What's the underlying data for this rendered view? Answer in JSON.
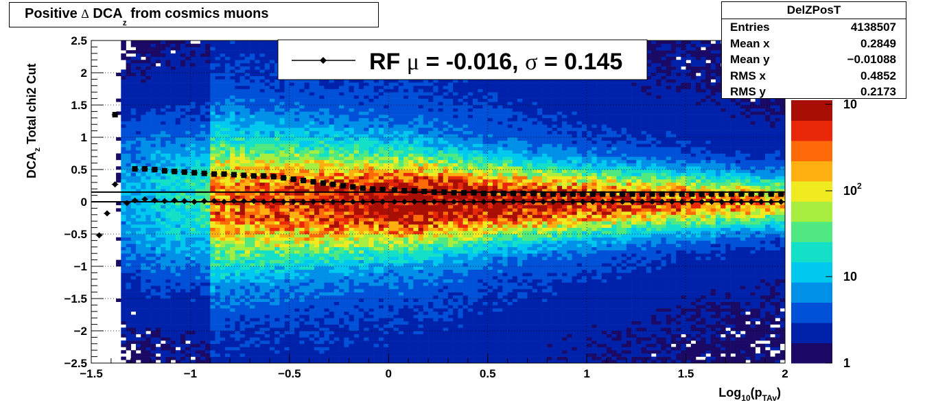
{
  "title": {
    "prefix": "Positive ",
    "delta": "Δ",
    "main": " DCA",
    "sub": "z",
    "suffix": " from cosmics muons"
  },
  "stats": {
    "name": "DelZPosT",
    "rows": [
      {
        "label": "Entries",
        "value": "4138507"
      },
      {
        "label": "Mean x",
        "value": "0.2849"
      },
      {
        "label": "Mean y",
        "value": "−0.01088"
      },
      {
        "label": "RMS x",
        "value": "0.4852"
      },
      {
        "label": "RMS y",
        "value": "0.2173"
      }
    ]
  },
  "legend": {
    "text_prefix": "RF ",
    "mu": "μ",
    "text_mid": " = -0.016, ",
    "sigma": "σ",
    "text_end": " =   0.145"
  },
  "colors": {
    "marker": "#000000",
    "axis": "#000000",
    "grid": "#000000",
    "palette": [
      "#1a0a66",
      "#0022aa",
      "#0050d8",
      "#0090e8",
      "#00c8ef",
      "#14e0c8",
      "#50e880",
      "#a8ee40",
      "#f0ea20",
      "#ffb010",
      "#ff6a08",
      "#e82808",
      "#a80e04"
    ]
  },
  "chart_data": {
    "type": "heatmap",
    "title": "Positive Δ DCAz from cosmics muons",
    "xlabel": "Log10(pTAv)",
    "ylabel": "DCAz   Total chi2 Cut",
    "xlim": [
      -1.5,
      2
    ],
    "ylim": [
      -2.5,
      2.5
    ],
    "x_ticks": [
      "−1.5",
      "−1",
      "−0.5",
      "0",
      "0.5",
      "1",
      "1.5",
      "2"
    ],
    "x_tick_values": [
      -1.5,
      -1,
      -0.5,
      0,
      0.5,
      1,
      1.5,
      2
    ],
    "y_ticks": [
      "2.5",
      "2",
      "1.5",
      "1",
      "0.5",
      "0",
      "−0.5",
      "−1",
      "−1.5",
      "−2",
      "−2.5"
    ],
    "y_tick_values": [
      2.5,
      2,
      1.5,
      1,
      0.5,
      0,
      -0.5,
      -1,
      -1.5,
      -2,
      -2.5
    ],
    "z_scale": "log",
    "z_ticks": [
      "1",
      "10",
      "10",
      "10"
    ],
    "z_tick_exponents": [
      "",
      "",
      "2",
      ""
    ],
    "grid": true,
    "series": [
      {
        "name": "RF μ = -0.016, σ = 0.145",
        "marker": "diamond",
        "x": [
          -1.46,
          -1.42,
          -1.38,
          -1.32,
          -1.28,
          -1.23,
          -1.18,
          -1.13,
          -1.08,
          -1.03,
          -0.98,
          -0.93,
          -0.88,
          -0.83,
          -0.78,
          -0.73,
          -0.68,
          -0.63,
          -0.58,
          -0.53,
          -0.48,
          -0.43,
          -0.38,
          -0.33,
          -0.28,
          -0.23,
          -0.18,
          -0.13,
          -0.08,
          -0.03,
          0.03,
          0.08,
          0.13,
          0.18,
          0.23,
          0.28,
          0.33,
          0.38,
          0.43,
          0.48,
          0.53,
          0.58,
          0.63,
          0.68,
          0.73,
          0.78,
          0.83,
          0.88,
          0.93,
          0.98,
          1.03,
          1.08,
          1.13,
          1.18,
          1.23,
          1.28,
          1.33,
          1.38,
          1.43,
          1.48,
          1.53,
          1.58,
          1.63,
          1.68,
          1.73,
          1.78,
          1.83,
          1.88,
          1.93,
          1.98
        ],
        "y": [
          -0.52,
          -0.18,
          0.27,
          -0.02,
          0.02,
          0.04,
          0.02,
          0.01,
          0.02,
          0.01,
          0.0,
          0.01,
          0.01,
          0.0,
          0.01,
          0.01,
          0.01,
          0.0,
          0.01,
          0.0,
          0.0,
          0.0,
          0.0,
          0.0,
          0.0,
          0.0,
          0.0,
          0.0,
          0.0,
          0.0,
          0.0,
          0.0,
          0.0,
          0.0,
          0.0,
          0.0,
          0.0,
          0.0,
          0.0,
          0.0,
          0.0,
          0.0,
          0.0,
          0.0,
          0.0,
          0.0,
          0.0,
          0.0,
          0.0,
          0.0,
          0.0,
          0.0,
          0.0,
          0.0,
          0.0,
          0.0,
          0.0,
          0.0,
          0.0,
          0.0,
          0.0,
          0.0,
          0.0,
          0.0,
          0.0,
          0.0,
          0.0,
          0.0,
          0.0,
          0.0
        ]
      },
      {
        "name": "",
        "marker": "square",
        "x": [
          -1.38,
          -1.28,
          -1.23,
          -1.18,
          -1.13,
          -1.08,
          -1.03,
          -0.98,
          -0.93,
          -0.88,
          -0.83,
          -0.78,
          -0.73,
          -0.68,
          -0.63,
          -0.58,
          -0.53,
          -0.48,
          -0.43,
          -0.38,
          -0.33,
          -0.28,
          -0.23,
          -0.18,
          -0.13,
          -0.08,
          -0.03,
          0.03,
          0.08,
          0.13,
          0.18,
          0.23,
          0.28,
          0.33,
          0.38,
          0.43,
          0.48,
          0.53,
          0.58,
          0.63,
          0.68,
          0.73,
          0.78,
          0.83,
          0.88,
          0.93,
          0.98,
          1.03,
          1.08,
          1.13,
          1.18,
          1.23,
          1.28,
          1.33,
          1.38,
          1.43,
          1.48,
          1.53,
          1.58,
          1.63,
          1.68,
          1.73,
          1.78,
          1.83,
          1.88,
          1.93,
          1.98
        ],
        "y": [
          1.35,
          0.51,
          0.51,
          0.5,
          0.48,
          0.47,
          0.46,
          0.45,
          0.44,
          0.43,
          0.43,
          0.42,
          0.41,
          0.4,
          0.4,
          0.39,
          0.37,
          0.35,
          0.33,
          0.31,
          0.29,
          0.27,
          0.25,
          0.23,
          0.21,
          0.2,
          0.19,
          0.18,
          0.17,
          0.17,
          0.16,
          0.15,
          0.15,
          0.14,
          0.14,
          0.14,
          0.13,
          0.13,
          0.13,
          0.13,
          0.13,
          0.13,
          0.12,
          0.12,
          0.12,
          0.12,
          0.12,
          0.12,
          0.12,
          0.12,
          0.12,
          0.12,
          0.12,
          0.12,
          0.12,
          0.12,
          0.12,
          0.12,
          0.12,
          0.12,
          0.12,
          0.12,
          0.12,
          0.12,
          0.12,
          0.12,
          0.12
        ]
      }
    ],
    "reference_lines_y": [
      0.15,
      0.0
    ]
  }
}
